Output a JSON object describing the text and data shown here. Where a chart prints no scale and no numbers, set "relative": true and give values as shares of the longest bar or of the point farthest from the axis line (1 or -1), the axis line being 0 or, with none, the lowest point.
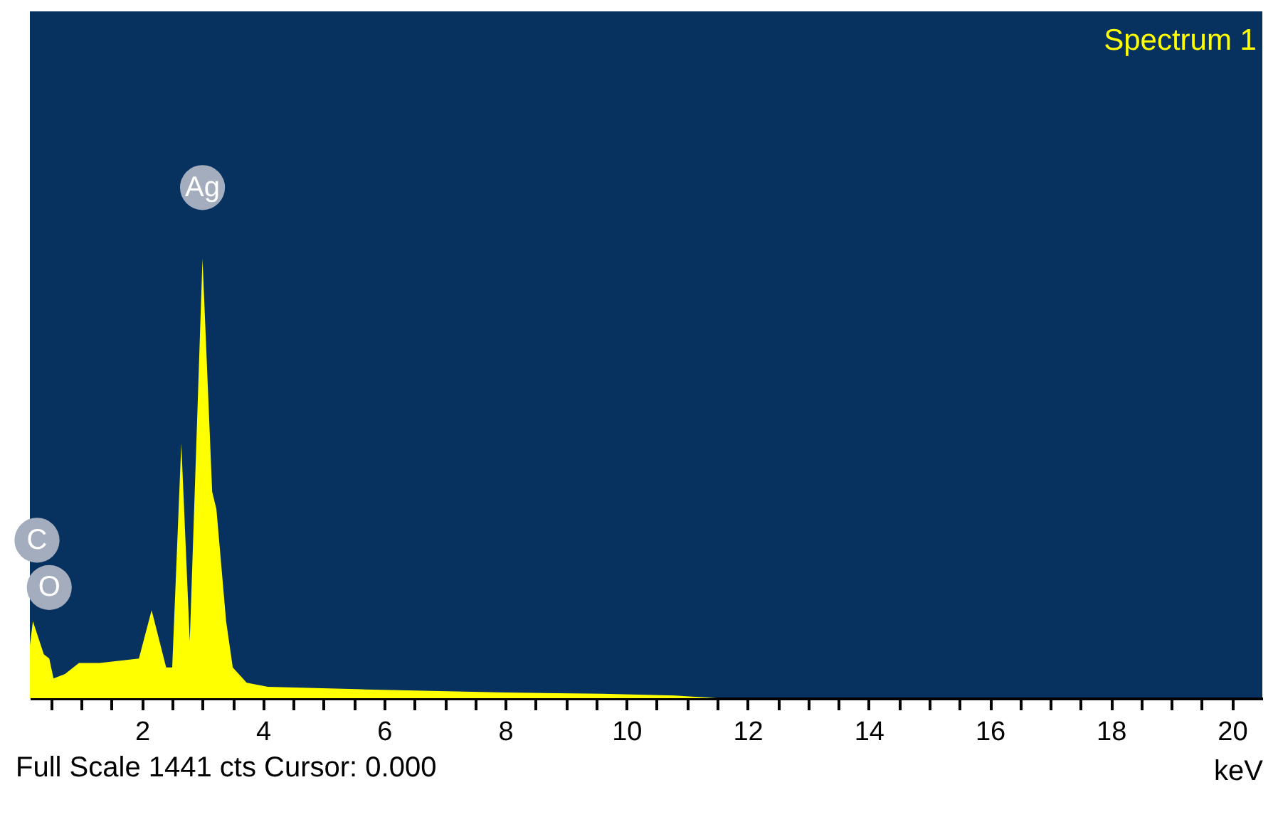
{
  "chart_data": {
    "type": "area",
    "relative": true,
    "xlabel": "keV",
    "x": [
      0.15,
      0.2,
      0.38,
      0.47,
      0.54,
      0.73,
      0.96,
      1.3,
      1.95,
      2.16,
      2.4,
      2.5,
      2.65,
      2.79,
      3.0,
      3.16,
      3.23,
      3.39,
      3.5,
      3.73,
      4.08,
      5.7,
      8.0,
      9.6,
      10.8,
      11.5,
      20.5
    ],
    "series": [
      {
        "color": "#ffff00",
        "values": [
          0.12,
          0.175,
          0.1,
          0.09,
          0.045,
          0.055,
          0.08,
          0.08,
          0.09,
          0.2,
          0.07,
          0.07,
          0.58,
          0.13,
          1.0,
          0.47,
          0.43,
          0.175,
          0.07,
          0.035,
          0.026,
          0.02,
          0.013,
          0.01,
          0.006,
          0,
          0
        ]
      }
    ],
    "xlim": [
      0.15,
      20.5
    ],
    "xticks": [
      {
        "value": 0.5,
        "label": null
      },
      {
        "value": 1,
        "label": null
      },
      {
        "value": 1.5,
        "label": null
      },
      2,
      {
        "value": 2.5,
        "label": null
      },
      {
        "value": 3,
        "label": null
      },
      {
        "value": 3.5,
        "label": null
      },
      4,
      {
        "value": 4.5,
        "label": null
      },
      {
        "value": 5,
        "label": null
      },
      {
        "value": 5.5,
        "label": null
      },
      6,
      {
        "value": 6.5,
        "label": null
      },
      {
        "value": 7,
        "label": null
      },
      {
        "value": 7.5,
        "label": null
      },
      8,
      {
        "value": 8.5,
        "label": null
      },
      {
        "value": 9,
        "label": null
      },
      {
        "value": 9.5,
        "label": null
      },
      10,
      {
        "value": 10.5,
        "label": null
      },
      {
        "value": 11,
        "label": null
      },
      {
        "value": 11.5,
        "label": null
      },
      12,
      {
        "value": 12.5,
        "label": null
      },
      {
        "value": 13,
        "label": null
      },
      {
        "value": 13.5,
        "label": null
      },
      14,
      {
        "value": 14.5,
        "label": null
      },
      {
        "value": 15,
        "label": null
      },
      {
        "value": 15.5,
        "label": null
      },
      16,
      {
        "value": 16.5,
        "label": null
      },
      {
        "value": 17,
        "label": null
      },
      {
        "value": 17.5,
        "label": null
      },
      18,
      {
        "value": 18.5,
        "label": null
      },
      {
        "value": 19,
        "label": null
      },
      {
        "value": 19.5,
        "label": null
      },
      20
    ],
    "grid": false,
    "annotations": [
      "Spectrum 1",
      "Full Scale 1441 cts Cursor: 0.000",
      {
        "text": "Ag",
        "x": 3.0,
        "y": 1.0
      },
      {
        "text": "O",
        "x": 0.47,
        "y": 0.09
      },
      "C"
    ]
  }
}
